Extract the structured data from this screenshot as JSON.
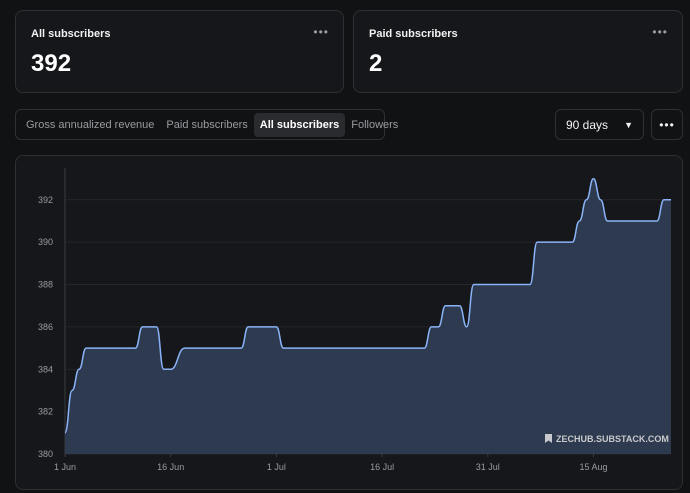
{
  "cards": [
    {
      "title": "All subscribers",
      "value": "392"
    },
    {
      "title": "Paid subscribers",
      "value": "2"
    }
  ],
  "card_menu_icon": "ellipsis-icon",
  "tabs": [
    {
      "label": "Gross annualized revenue",
      "active": false
    },
    {
      "label": "Paid subscribers",
      "active": false
    },
    {
      "label": "All subscribers",
      "active": true
    },
    {
      "label": "Followers",
      "active": false
    }
  ],
  "range": {
    "label": "90 days",
    "icon": "caret-down-icon"
  },
  "more_icon": "ellipsis-icon",
  "colors": {
    "line": "#8ab4f8",
    "fill": "#2d3a4f",
    "background": "#16171a"
  },
  "chart_data": {
    "type": "area",
    "x": [
      "Jun 1",
      "Jun 2",
      "Jun 3",
      "Jun 4",
      "Jun 5",
      "Jun 6",
      "Jun 11",
      "Jun 12",
      "Jun 13",
      "Jun 14",
      "Jun 15",
      "Jun 16",
      "Jun 18",
      "Jun 19",
      "Jun 20",
      "Jun 26",
      "Jun 27",
      "Jun 28",
      "Jun 29",
      "Jul 1",
      "Jul 2",
      "Jul 3",
      "Jul 4",
      "Jul 5",
      "Jul 6",
      "Jul 22",
      "Jul 23",
      "Jul 24",
      "Jul 25",
      "Jul 26",
      "Jul 27",
      "Jul 28",
      "Jul 29",
      "Jul 30",
      "Aug 2",
      "Aug 5",
      "Aug 6",
      "Aug 7",
      "Aug 10",
      "Aug 12",
      "Aug 13",
      "Aug 14",
      "Aug 15",
      "Aug 16",
      "Aug 17",
      "Aug 18",
      "Aug 24",
      "Aug 25",
      "Aug 26"
    ],
    "y": [
      381,
      383,
      384,
      385,
      385,
      385,
      385,
      386,
      386,
      386,
      384,
      384,
      385,
      385,
      385,
      385,
      386,
      386,
      386,
      386,
      385,
      385,
      385,
      385,
      385,
      385,
      386,
      386,
      387,
      387,
      387,
      386,
      388,
      388,
      388,
      388,
      388,
      390,
      390,
      390,
      391,
      392,
      393,
      392,
      391,
      391,
      391,
      392,
      392
    ],
    "xticks": [
      "1 Jun",
      "16 Jun",
      "1 Jul",
      "16 Jul",
      "31 Jul",
      "15 Aug"
    ],
    "ytick_labels": [
      "380",
      "382",
      "384",
      "386",
      "388",
      "390",
      "392"
    ],
    "ylim": [
      380,
      393.5
    ],
    "grid": true,
    "watermark": "ZECHUB.SUBSTACK.COM",
    "watermark_icon": "bookmark-icon"
  }
}
